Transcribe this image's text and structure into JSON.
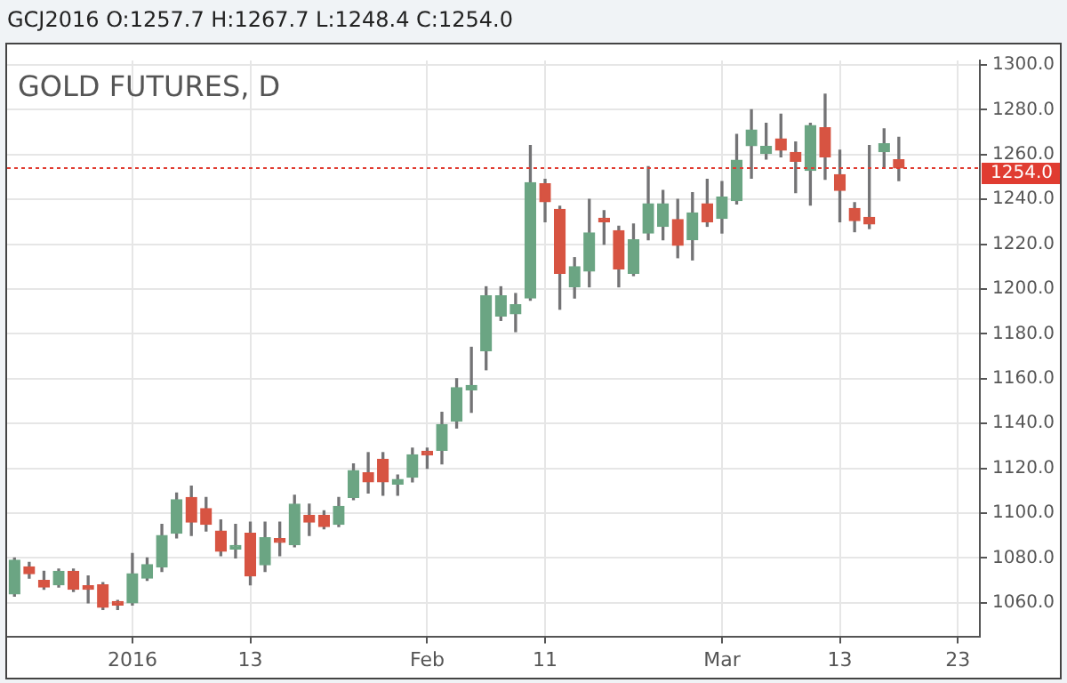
{
  "chart_data": {
    "type": "candlestick",
    "title": "GOLD FUTURES, D",
    "subtitle": "GCJ2016 O:1257.7 H:1267.7 L:1248.4 C:1254.0",
    "categories": [
      null,
      null,
      null,
      null,
      null,
      null,
      null,
      null,
      "2016",
      null,
      null,
      null,
      null,
      null,
      null,
      null,
      "13",
      null,
      null,
      null,
      null,
      null,
      null,
      null,
      null,
      null,
      null,
      null,
      "Feb",
      null,
      null,
      null,
      null,
      null,
      null,
      null,
      "11",
      null,
      null,
      null,
      null,
      null,
      null,
      null,
      null,
      null,
      null,
      null,
      "Mar",
      null,
      null,
      null,
      null,
      null,
      null,
      null,
      "13",
      null,
      null,
      null,
      null,
      null,
      null,
      null,
      "23",
      null
    ],
    "ohlc": [
      [
        1064,
        1080,
        1063,
        1079
      ],
      [
        1076,
        1078,
        1071,
        1073
      ],
      [
        1070,
        1074,
        1066,
        1067
      ],
      [
        1068,
        1075,
        1067,
        1074
      ],
      [
        1074,
        1075,
        1065,
        1066
      ],
      [
        1067,
        1072,
        1060,
        1066
      ],
      [
        1068,
        1069,
        1057,
        1058
      ],
      [
        1059.5,
        1061,
        1057,
        1059
      ],
      [
        1060,
        1082,
        1059,
        1073
      ],
      [
        1071,
        1080,
        1070,
        1077
      ],
      [
        1076,
        1095,
        1074,
        1090
      ],
      [
        1091,
        1109,
        1089,
        1106
      ],
      [
        1107,
        1112,
        1090,
        1096
      ],
      [
        1102,
        1107,
        1092,
        1095
      ],
      [
        1092,
        1097,
        1081,
        1083
      ],
      [
        1084,
        1095,
        1080,
        1085
      ],
      [
        1091,
        1096,
        1068,
        1072
      ],
      [
        1077,
        1096,
        1074,
        1089
      ],
      [
        1088.5,
        1096,
        1081,
        1087
      ],
      [
        1086,
        1108,
        1085,
        1104
      ],
      [
        1099,
        1104,
        1090,
        1096
      ],
      [
        1099,
        1101,
        1093,
        1094
      ],
      [
        1095,
        1107,
        1094,
        1103
      ],
      [
        1107,
        1122,
        1106,
        1119
      ],
      [
        1118,
        1127,
        1109,
        1114
      ],
      [
        1124,
        1127,
        1108,
        1114
      ],
      [
        1113,
        1117,
        1108,
        1115
      ],
      [
        1116,
        1129,
        1114,
        1126
      ],
      [
        1127,
        1129,
        1120,
        1126
      ],
      [
        1128,
        1145,
        1122,
        1139.5
      ],
      [
        1141,
        1160,
        1138,
        1156
      ],
      [
        1155,
        1174,
        1145,
        1157
      ],
      [
        1172.5,
        1201,
        1164,
        1197
      ],
      [
        1188,
        1201,
        1186,
        1197
      ],
      [
        1189,
        1198,
        1181,
        1193
      ],
      [
        1196,
        1264,
        1195,
        1247.5
      ],
      [
        1247,
        1249,
        1230,
        1239
      ],
      [
        1235.6,
        1237,
        1191,
        1207
      ],
      [
        1201,
        1214,
        1196,
        1210
      ],
      [
        1208,
        1240,
        1201,
        1225
      ],
      [
        1231,
        1235,
        1220,
        1230
      ],
      [
        1226,
        1228,
        1201,
        1209
      ],
      [
        1207,
        1229,
        1206,
        1222
      ],
      [
        1225,
        1254.6,
        1222,
        1238
      ],
      [
        1228,
        1244,
        1222,
        1238
      ],
      [
        1231,
        1240,
        1214,
        1219.5
      ],
      [
        1222,
        1243,
        1213,
        1234
      ],
      [
        1238,
        1249,
        1228,
        1230
      ],
      [
        1231.5,
        1248,
        1225,
        1241
      ],
      [
        1239.5,
        1269,
        1238,
        1257.5
      ],
      [
        1264,
        1280,
        1249.5,
        1271
      ],
      [
        1260.5,
        1274,
        1258,
        1263.6
      ],
      [
        1267,
        1278,
        1259,
        1262
      ],
      [
        1261,
        1265.6,
        1243,
        1257
      ],
      [
        1253,
        1274,
        1237.5,
        1273
      ],
      [
        1272,
        1287,
        1249,
        1259
      ],
      [
        1251,
        1262,
        1230,
        1244
      ],
      [
        1236,
        1238.5,
        1225.6,
        1230.5
      ],
      [
        1232,
        1264,
        1227,
        1229
      ],
      [
        1261.3,
        1271.5,
        1254,
        1264.8
      ],
      [
        1257.7,
        1267.7,
        1248.4,
        1254.0
      ],
      null,
      null,
      null,
      null,
      null
    ],
    "colors": [
      "#6ba583",
      "#d75442",
      "#d75442",
      "#6ba583",
      "#d75442",
      "#d75442",
      "#d75442",
      "#d75442",
      "#6ba583",
      "#6ba583",
      "#6ba583",
      "#6ba583",
      "#d75442",
      "#d75442",
      "#d75442",
      "#6ba583",
      "#d75442",
      "#6ba583",
      "#d75442",
      "#6ba583",
      "#d75442",
      "#d75442",
      "#6ba583",
      "#6ba583",
      "#d75442",
      "#d75442",
      "#6ba583",
      "#6ba583",
      "#d75442",
      "#6ba583",
      "#6ba583",
      "#6ba583",
      "#6ba583",
      "#6ba583",
      "#6ba583",
      "#6ba583",
      "#d75442",
      "#d75442",
      "#6ba583",
      "#6ba583",
      "#d75442",
      "#d75442",
      "#6ba583",
      "#6ba583",
      "#6ba583",
      "#d75442",
      "#6ba583",
      "#d75442",
      "#6ba583",
      "#6ba583",
      "#6ba583",
      "#6ba583",
      "#d75442",
      "#d75442",
      "#6ba583",
      "#d75442",
      "#d75442",
      "#d75442",
      "#d75442",
      "#6ba583",
      "#d75442",
      null,
      null,
      null,
      null,
      null
    ],
    "ylim": [
      1045,
      1302
    ],
    "yticks": [
      {
        "value": 1060,
        "label": "1060.0"
      },
      {
        "value": 1080,
        "label": "1080.0"
      },
      {
        "value": 1100,
        "label": "1100.0"
      },
      {
        "value": 1120,
        "label": "1120.0"
      },
      {
        "value": 1140,
        "label": "1140.0"
      },
      {
        "value": 1160,
        "label": "1160.0"
      },
      {
        "value": 1180,
        "label": "1180.0"
      },
      {
        "value": 1200,
        "label": "1200.0"
      },
      {
        "value": 1220,
        "label": "1220.0"
      },
      {
        "value": 1240,
        "label": "1240.0"
      },
      {
        "value": 1260,
        "label": "1260.0"
      },
      {
        "value": 1280,
        "label": "1280.0"
      },
      {
        "value": 1300,
        "label": "1300.0"
      }
    ],
    "ref_lines": [
      {
        "axis": "y",
        "value": 1254.0,
        "label": "1254.0",
        "color": "#e03c31",
        "line_style": "dotted"
      }
    ],
    "grid": true
  }
}
